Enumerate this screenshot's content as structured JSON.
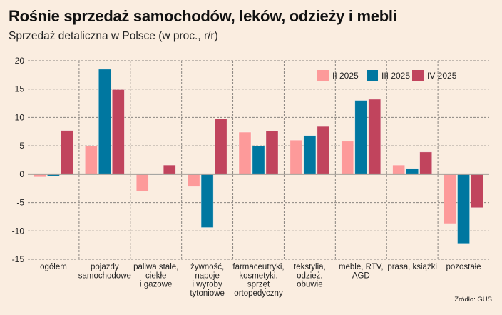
{
  "header": {
    "title": "Rośnie sprzedaż samochodów, leków, odzieży i mebli",
    "subtitle": "Sprzedaż detaliczna w Polsce (w proc., r/r)"
  },
  "footer": {
    "source": "Źródło: GUS"
  },
  "chart_data": {
    "type": "bar",
    "title": "Rośnie sprzedaż samochodów, leków, odzieży i mebli",
    "subtitle": "Sprzedaż detaliczna w Polsce (w proc., r/r)",
    "xlabel": "",
    "ylabel": "",
    "ylim": [
      -15,
      20
    ],
    "yticks": [
      20,
      15,
      10,
      5,
      0,
      -5,
      -10,
      -15
    ],
    "grid": true,
    "legend_position": "top-right",
    "categories": [
      [
        "ogółem"
      ],
      [
        "pojazdy",
        "samochodowe"
      ],
      [
        "paliwa stałe,",
        "ciekłe",
        "i gazowe"
      ],
      [
        "żywność,",
        "napoje",
        "i wyroby",
        "tytoniowe"
      ],
      [
        "farmaceutryki,",
        "kosmetyki,",
        "sprzęt",
        "ortopedyczny"
      ],
      [
        "tekstylia,",
        "odzież,",
        "obuwie"
      ],
      [
        "meble, RTV,",
        "AGD"
      ],
      [
        "prasa, książki"
      ],
      [
        "pozostałe"
      ]
    ],
    "series": [
      {
        "name": "II 2025",
        "color": "#fd9a9a",
        "values": [
          -0.5,
          5.0,
          -3.0,
          -2.2,
          7.4,
          6.0,
          5.8,
          1.6,
          -8.7
        ]
      },
      {
        "name": "III 2025",
        "color": "#0077a0",
        "values": [
          -0.3,
          18.5,
          -0.1,
          -9.4,
          5.0,
          6.8,
          13.0,
          1.0,
          -12.2
        ]
      },
      {
        "name": "IV 2025",
        "color": "#c1445d",
        "values": [
          7.7,
          14.9,
          1.6,
          9.8,
          7.6,
          8.4,
          13.2,
          3.9,
          -5.9
        ]
      }
    ],
    "source": "Źródło: GUS"
  }
}
